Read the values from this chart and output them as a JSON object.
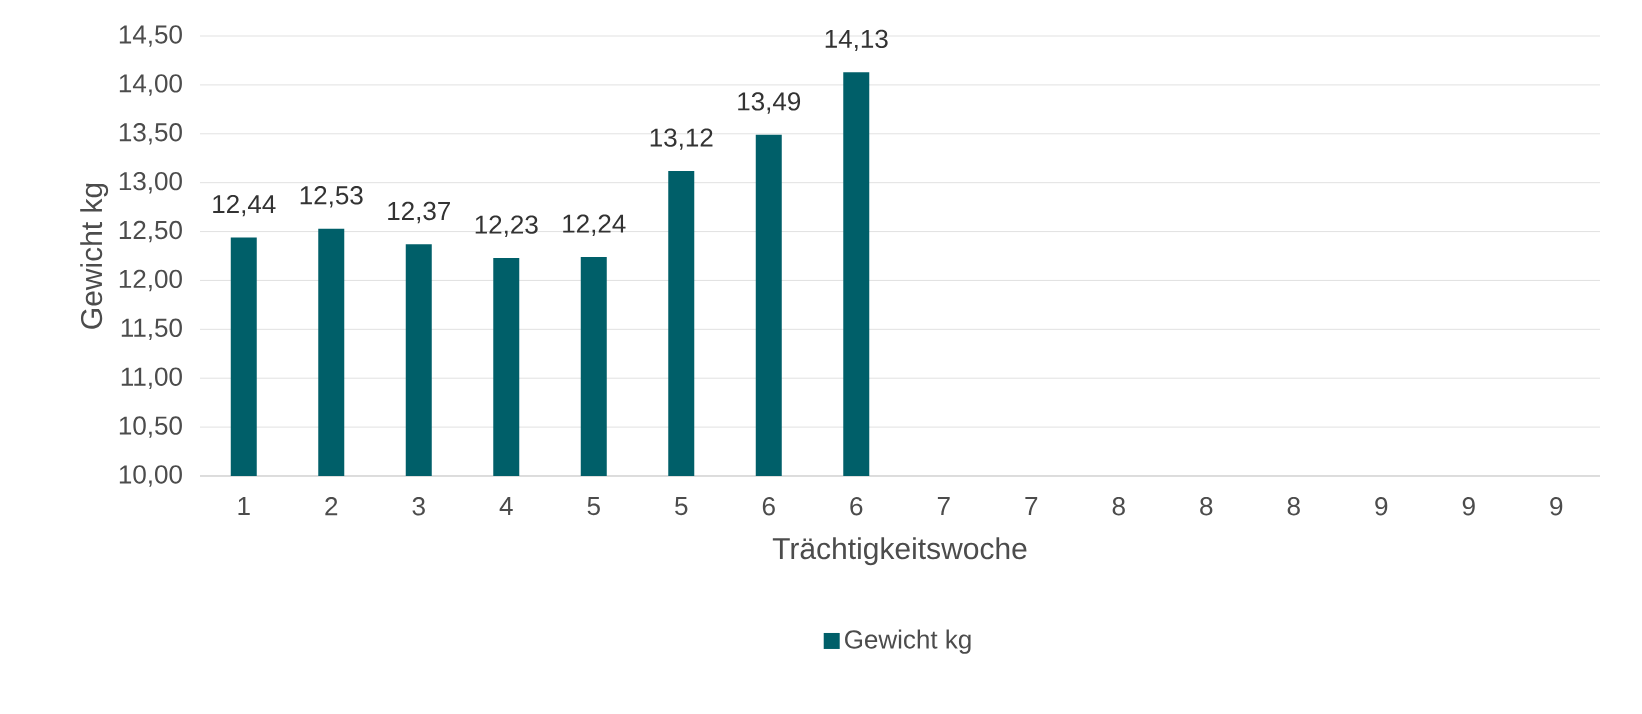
{
  "chart_data": {
    "type": "bar",
    "xlabel": "Trächtigkeitswoche",
    "ylabel": "Gewicht kg",
    "categories": [
      "1",
      "2",
      "3",
      "4",
      "5",
      "5",
      "6",
      "6",
      "7",
      "7",
      "8",
      "8",
      "8",
      "9",
      "9",
      "9"
    ],
    "series": [
      {
        "name": "Gewicht kg",
        "color": "#005f69",
        "values": [
          12.44,
          12.53,
          12.37,
          12.23,
          12.24,
          13.12,
          13.49,
          14.13,
          null,
          null,
          null,
          null,
          null,
          null,
          null,
          null
        ],
        "value_labels": [
          "12,44",
          "12,53",
          "12,37",
          "12,23",
          "12,24",
          "13,12",
          "13,49",
          "14,13",
          null,
          null,
          null,
          null,
          null,
          null,
          null,
          null
        ]
      }
    ],
    "ylim": [
      10,
      14.5
    ],
    "yticks": [
      {
        "value": 10,
        "label": "10,00"
      },
      {
        "value": 10.5,
        "label": "10,50"
      },
      {
        "value": 11,
        "label": "11,00"
      },
      {
        "value": 11.5,
        "label": "11,50"
      },
      {
        "value": 12,
        "label": "12,00"
      },
      {
        "value": 12.5,
        "label": "12,50"
      },
      {
        "value": 13,
        "label": "13,00"
      },
      {
        "value": 13.5,
        "label": "13,50"
      },
      {
        "value": 14,
        "label": "14,00"
      },
      {
        "value": 14.5,
        "label": "14,50"
      }
    ],
    "grid": "y",
    "legend": "bottom"
  }
}
